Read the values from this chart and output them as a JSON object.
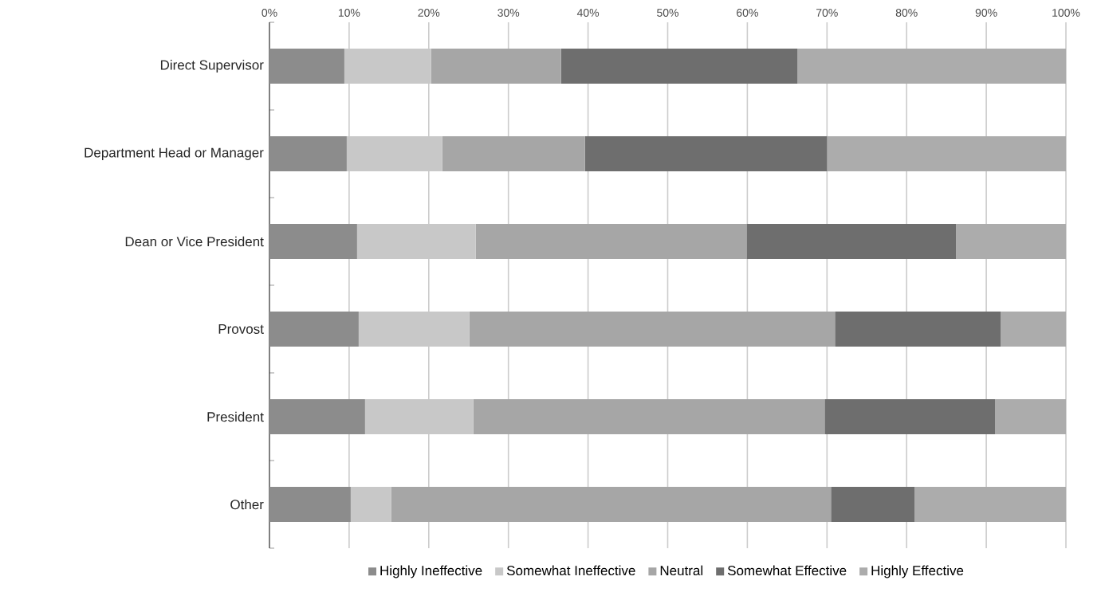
{
  "chart_data": {
    "type": "bar",
    "orientation": "horizontal",
    "stacked": true,
    "categories": [
      "Direct Supervisor",
      "Department Head or Manager",
      "Dean or Vice President",
      "Provost",
      "President",
      "Other"
    ],
    "series": [
      {
        "name": "Highly Ineffective",
        "color": "#8c8c8c",
        "values": [
          9.4,
          9.7,
          11.0,
          11.2,
          12.0,
          10.2
        ]
      },
      {
        "name": "Somewhat Ineffective",
        "color": "#c8c8c8",
        "values": [
          10.9,
          12.0,
          14.9,
          13.9,
          13.6,
          5.1
        ]
      },
      {
        "name": "Neutral",
        "color": "#a6a6a6",
        "values": [
          16.3,
          17.9,
          34.0,
          45.9,
          44.1,
          55.2
        ]
      },
      {
        "name": "Somewhat Effective",
        "color": "#6e6e6e",
        "values": [
          29.7,
          30.4,
          26.3,
          20.8,
          21.4,
          10.5
        ]
      },
      {
        "name": "Highly Effective",
        "color": "#acacac",
        "values": [
          33.7,
          30.0,
          13.8,
          8.2,
          8.9,
          19.0
        ]
      }
    ],
    "xlim": [
      0,
      100
    ],
    "xticks": [
      {
        "value": 0,
        "label": "0%"
      },
      {
        "value": 10,
        "label": "10%"
      },
      {
        "value": 20,
        "label": "20%"
      },
      {
        "value": 30,
        "label": "30%"
      },
      {
        "value": 40,
        "label": "40%"
      },
      {
        "value": 50,
        "label": "50%"
      },
      {
        "value": 60,
        "label": "60%"
      },
      {
        "value": 70,
        "label": "70%"
      },
      {
        "value": 80,
        "label": "80%"
      },
      {
        "value": 90,
        "label": "90%"
      },
      {
        "value": 100,
        "label": "100%"
      }
    ],
    "grid": "x",
    "legend": "bottom"
  }
}
